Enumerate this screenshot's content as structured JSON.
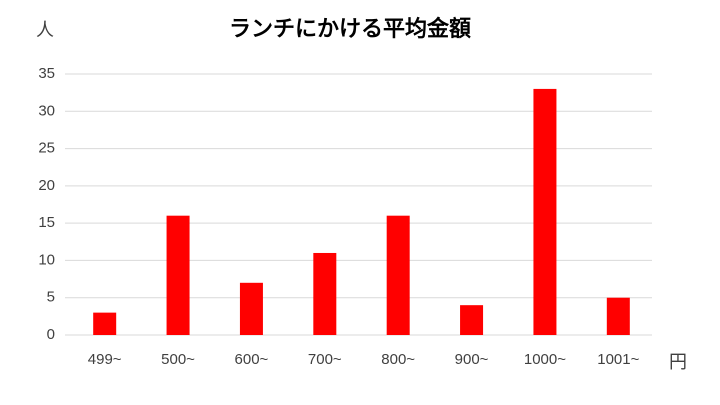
{
  "chart_data": {
    "type": "bar",
    "title": "ランチにかける平均金額",
    "y_label": "人",
    "x_label": "円",
    "categories": [
      "499~",
      "500~",
      "600~",
      "700~",
      "800~",
      "900~",
      "1000~",
      "1001~"
    ],
    "values": [
      3,
      16,
      7,
      11,
      16,
      4,
      33,
      5
    ],
    "color": "#ff0000",
    "ylim": [
      0,
      35
    ],
    "yticks": [
      0,
      5,
      10,
      15,
      20,
      25,
      30,
      35
    ],
    "grid": true
  }
}
